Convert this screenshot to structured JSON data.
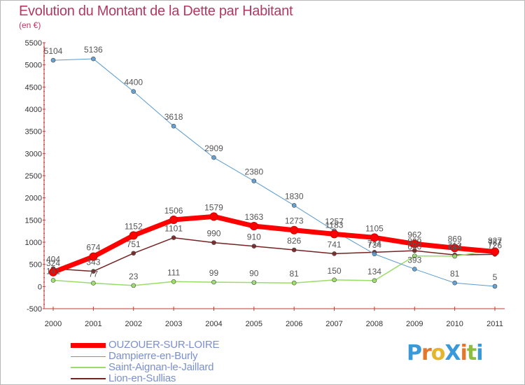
{
  "header": {
    "title": "Evolution du Montant de la Dette par Habitant",
    "subtitle": "(en €)"
  },
  "logo": {
    "text": "ProXiti",
    "colors": [
      "#3a9ad9",
      "#e3772b",
      "#e5b52a",
      "#3a9ad9",
      "#e3772b",
      "#8cbf3f",
      "#3a9ad9"
    ]
  },
  "chart_data": {
    "type": "line",
    "title": "Evolution du Montant de la Dette par Habitant",
    "subtitle": "(en €)",
    "xlabel": "",
    "ylabel": "",
    "x": [
      "2000",
      "2001",
      "2002",
      "2003",
      "2004",
      "2005",
      "2006",
      "2007",
      "2008",
      "2009",
      "2010",
      "2011"
    ],
    "ylim": [
      -500,
      5500
    ],
    "yticks": [
      -500,
      0,
      500,
      1000,
      1500,
      2000,
      2500,
      3000,
      3500,
      4000,
      4500,
      5000,
      5500
    ],
    "grid": false,
    "legend_position": "bottom-left",
    "series": [
      {
        "name": "OUZOUER-SUR-LOIRE",
        "color": "#ff0000",
        "values": [
          324,
          674,
          1152,
          1506,
          1579,
          1363,
          1273,
          1183,
          1105,
          962,
          869,
          787
        ],
        "labels": [
          "324",
          "674",
          "1152",
          "1506",
          "1579",
          "1363",
          "1273",
          "1183",
          "1105",
          "962",
          "869",
          "787"
        ]
      },
      {
        "name": "Dampierre-en-Burly",
        "color": "#5a9bd0",
        "values": [
          5104,
          5136,
          4400,
          3618,
          2909,
          2380,
          1830,
          1257,
          734,
          393,
          81,
          5
        ],
        "labels": [
          "5104",
          "5136",
          "4400",
          "3618",
          "2909",
          "2380",
          "1830",
          "1257",
          "734",
          "393",
          "81",
          "5"
        ]
      },
      {
        "name": "Saint-Aignan-le-Jaillard",
        "color": "#99dd66",
        "values": [
          141,
          77,
          23,
          111,
          99,
          90,
          81,
          150,
          134,
          690,
          684,
          827
        ],
        "labels": [
          "141",
          "77",
          "23",
          "111",
          "99",
          "90",
          "81",
          "150",
          "134",
          "690",
          "684",
          "827"
        ]
      },
      {
        "name": "Lion-en-Sullias",
        "color": "#772222",
        "values": [
          404,
          343,
          751,
          1101,
          990,
          910,
          826,
          741,
          774,
          809,
          713,
          726
        ],
        "labels": [
          "404",
          "343",
          "751",
          "1101",
          "990",
          "910",
          "826",
          "741",
          "774",
          "809",
          "713",
          "726"
        ]
      }
    ]
  }
}
